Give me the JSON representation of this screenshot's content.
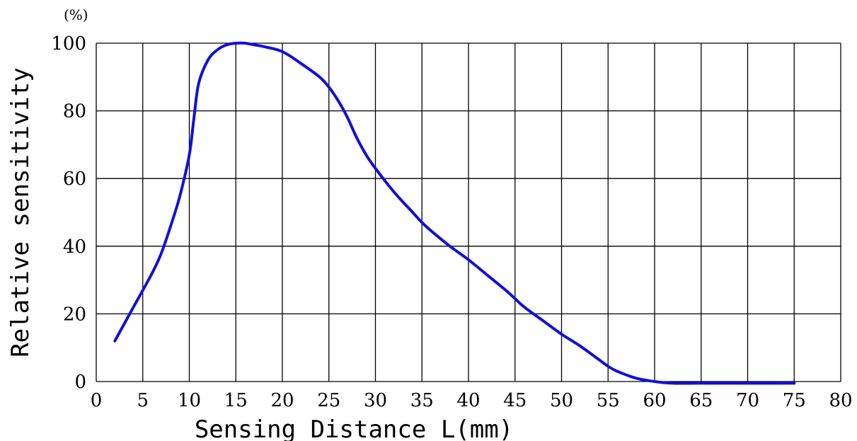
{
  "chart_data": {
    "type": "line",
    "xlabel": "Sensing Distance L(mm)",
    "ylabel": "Relative sensitivity",
    "y_unit": "(%)",
    "xlim": [
      0,
      80
    ],
    "ylim": [
      0,
      100
    ],
    "x_ticks": [
      0,
      5,
      10,
      15,
      20,
      25,
      30,
      35,
      40,
      45,
      50,
      55,
      60,
      65,
      70,
      75,
      80
    ],
    "y_ticks": [
      0,
      20,
      40,
      60,
      80,
      100
    ],
    "grid": true,
    "line_color": "#1010d8",
    "series": [
      {
        "x": [
          2,
          4,
          6,
          7,
          8,
          9,
          10,
          10.5,
          11,
          12,
          13,
          14,
          15,
          16,
          17,
          18,
          20,
          22,
          24,
          25,
          26,
          27,
          28,
          29,
          30,
          32,
          34,
          35,
          36,
          38,
          40,
          42,
          44,
          45,
          46,
          48,
          50,
          52,
          54,
          55,
          56,
          58,
          60,
          62,
          65,
          70,
          75
        ],
        "y": [
          12,
          22,
          32,
          38,
          46,
          55,
          67,
          78,
          88,
          95,
          98,
          99.5,
          100,
          100,
          99.5,
          99,
          97.5,
          94,
          90,
          87,
          83,
          78,
          72,
          67,
          63,
          56,
          50,
          47,
          44.5,
          40,
          36,
          31.5,
          27,
          24.5,
          22,
          18,
          14,
          10.5,
          6.5,
          4.5,
          3,
          1,
          0,
          -0.5,
          -0.5,
          -0.5,
          -0.5
        ]
      }
    ]
  }
}
